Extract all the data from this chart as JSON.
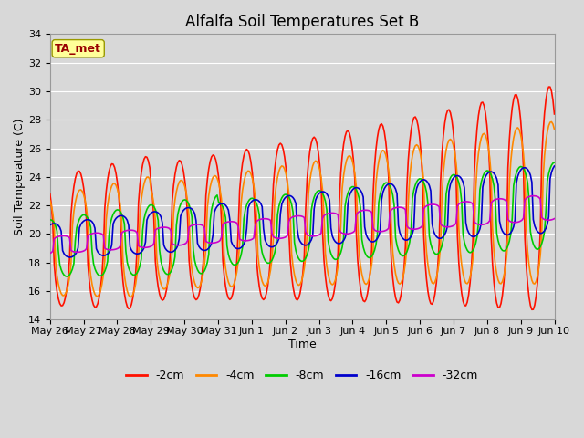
{
  "title": "Alfalfa Soil Temperatures Set B",
  "xlabel": "Time",
  "ylabel": "Soil Temperature (C)",
  "ylim": [
    14,
    34
  ],
  "yticks": [
    14,
    16,
    18,
    20,
    22,
    24,
    26,
    28,
    30,
    32,
    34
  ],
  "background_color": "#d8d8d8",
  "plot_bg_color": "#d8d8d8",
  "grid_color": "#ffffff",
  "series": {
    "-2cm": {
      "color": "#ff1100",
      "lw": 1.2
    },
    "-4cm": {
      "color": "#ff8800",
      "lw": 1.2
    },
    "-8cm": {
      "color": "#00cc00",
      "lw": 1.2
    },
    "-16cm": {
      "color": "#0000cc",
      "lw": 1.2
    },
    "-32cm": {
      "color": "#cc00cc",
      "lw": 1.2
    }
  },
  "ta_met_label": "TA_met",
  "ta_met_color": "#990000",
  "ta_met_bg": "#ffff99",
  "x_tick_labels": [
    "May 26",
    "May 27",
    "May 28",
    "May 29",
    "May 30",
    "May 31",
    "Jun 1",
    "Jun 2",
    "Jun 3",
    "Jun 4",
    "Jun 5",
    "Jun 6",
    "Jun 7",
    "Jun 8",
    "Jun 9",
    "Jun 10"
  ],
  "title_fontsize": 12,
  "axis_label_fontsize": 9,
  "tick_fontsize": 8,
  "legend_fontsize": 9,
  "figsize": [
    6.4,
    4.8
  ],
  "dpi": 100
}
